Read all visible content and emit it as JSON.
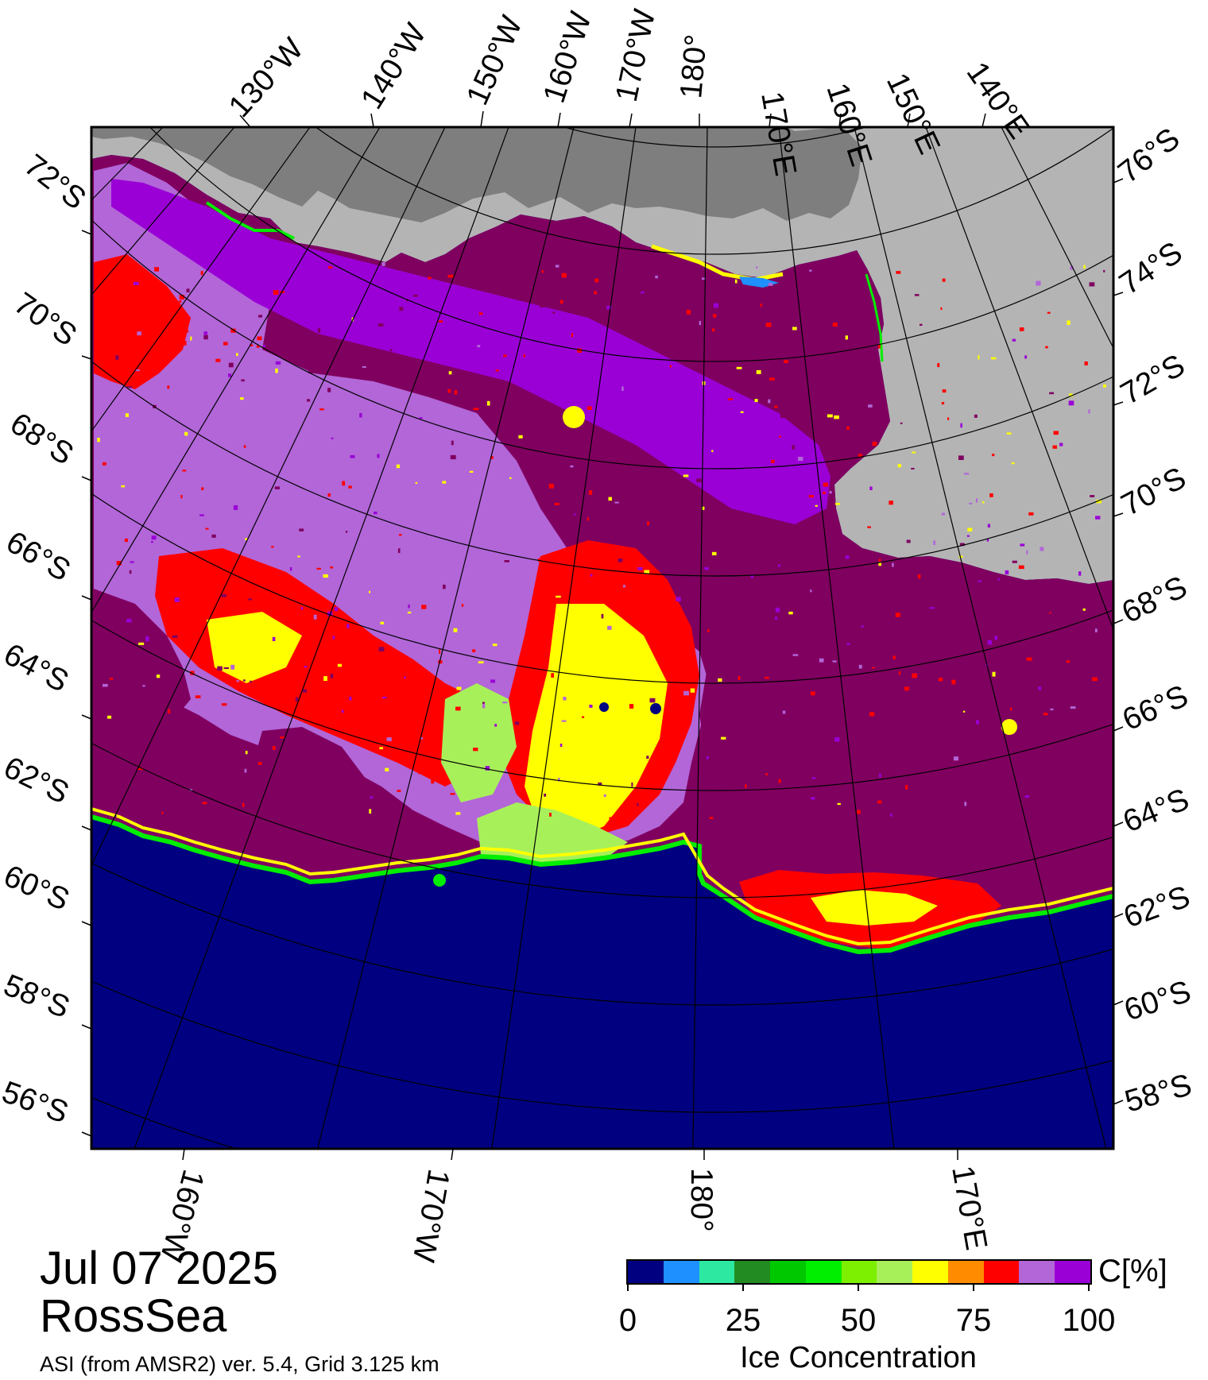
{
  "map": {
    "date": "Jul 07 2025",
    "region": "RossSea",
    "source": "ASI (from AMSR2) ver. 5.4,  Grid 3.125 km",
    "top_longitude_labels": [
      "130°W",
      "140°W",
      "150°W",
      "160°W",
      "170°W",
      "180°",
      "170°E",
      "160°E",
      "150°E",
      "140°E"
    ],
    "bottom_longitude_labels": [
      "160°W",
      "170°W",
      "180°",
      "170°E"
    ],
    "left_latitude_labels": [
      "72°S",
      "70°S",
      "68°S",
      "66°S",
      "64°S",
      "62°S",
      "60°S",
      "58°S",
      "56°S"
    ],
    "right_latitude_labels": [
      "76°S",
      "74°S",
      "72°S",
      "70°S",
      "68°S",
      "66°S",
      "64°S",
      "62°S",
      "60°S",
      "58°S"
    ],
    "colors": {
      "open_water": "#000080",
      "land": "#b4b4b4",
      "ice_shelf": "#7e7e7e",
      "ice_100": "#800060",
      "ice_90": "#b266d8",
      "ice_mid": "#9a00d6"
    }
  },
  "colorbar": {
    "title": "Ice Concentration",
    "unit": "C[%]",
    "ticks": [
      "0",
      "25",
      "50",
      "75",
      "100"
    ],
    "colors": [
      "#000080",
      "#1e90ff",
      "#2de8a0",
      "#228b22",
      "#00c800",
      "#00ee00",
      "#7cf000",
      "#a8f05a",
      "#ffff00",
      "#ff8c00",
      "#ff0000",
      "#b266d8",
      "#9a00d6"
    ]
  }
}
